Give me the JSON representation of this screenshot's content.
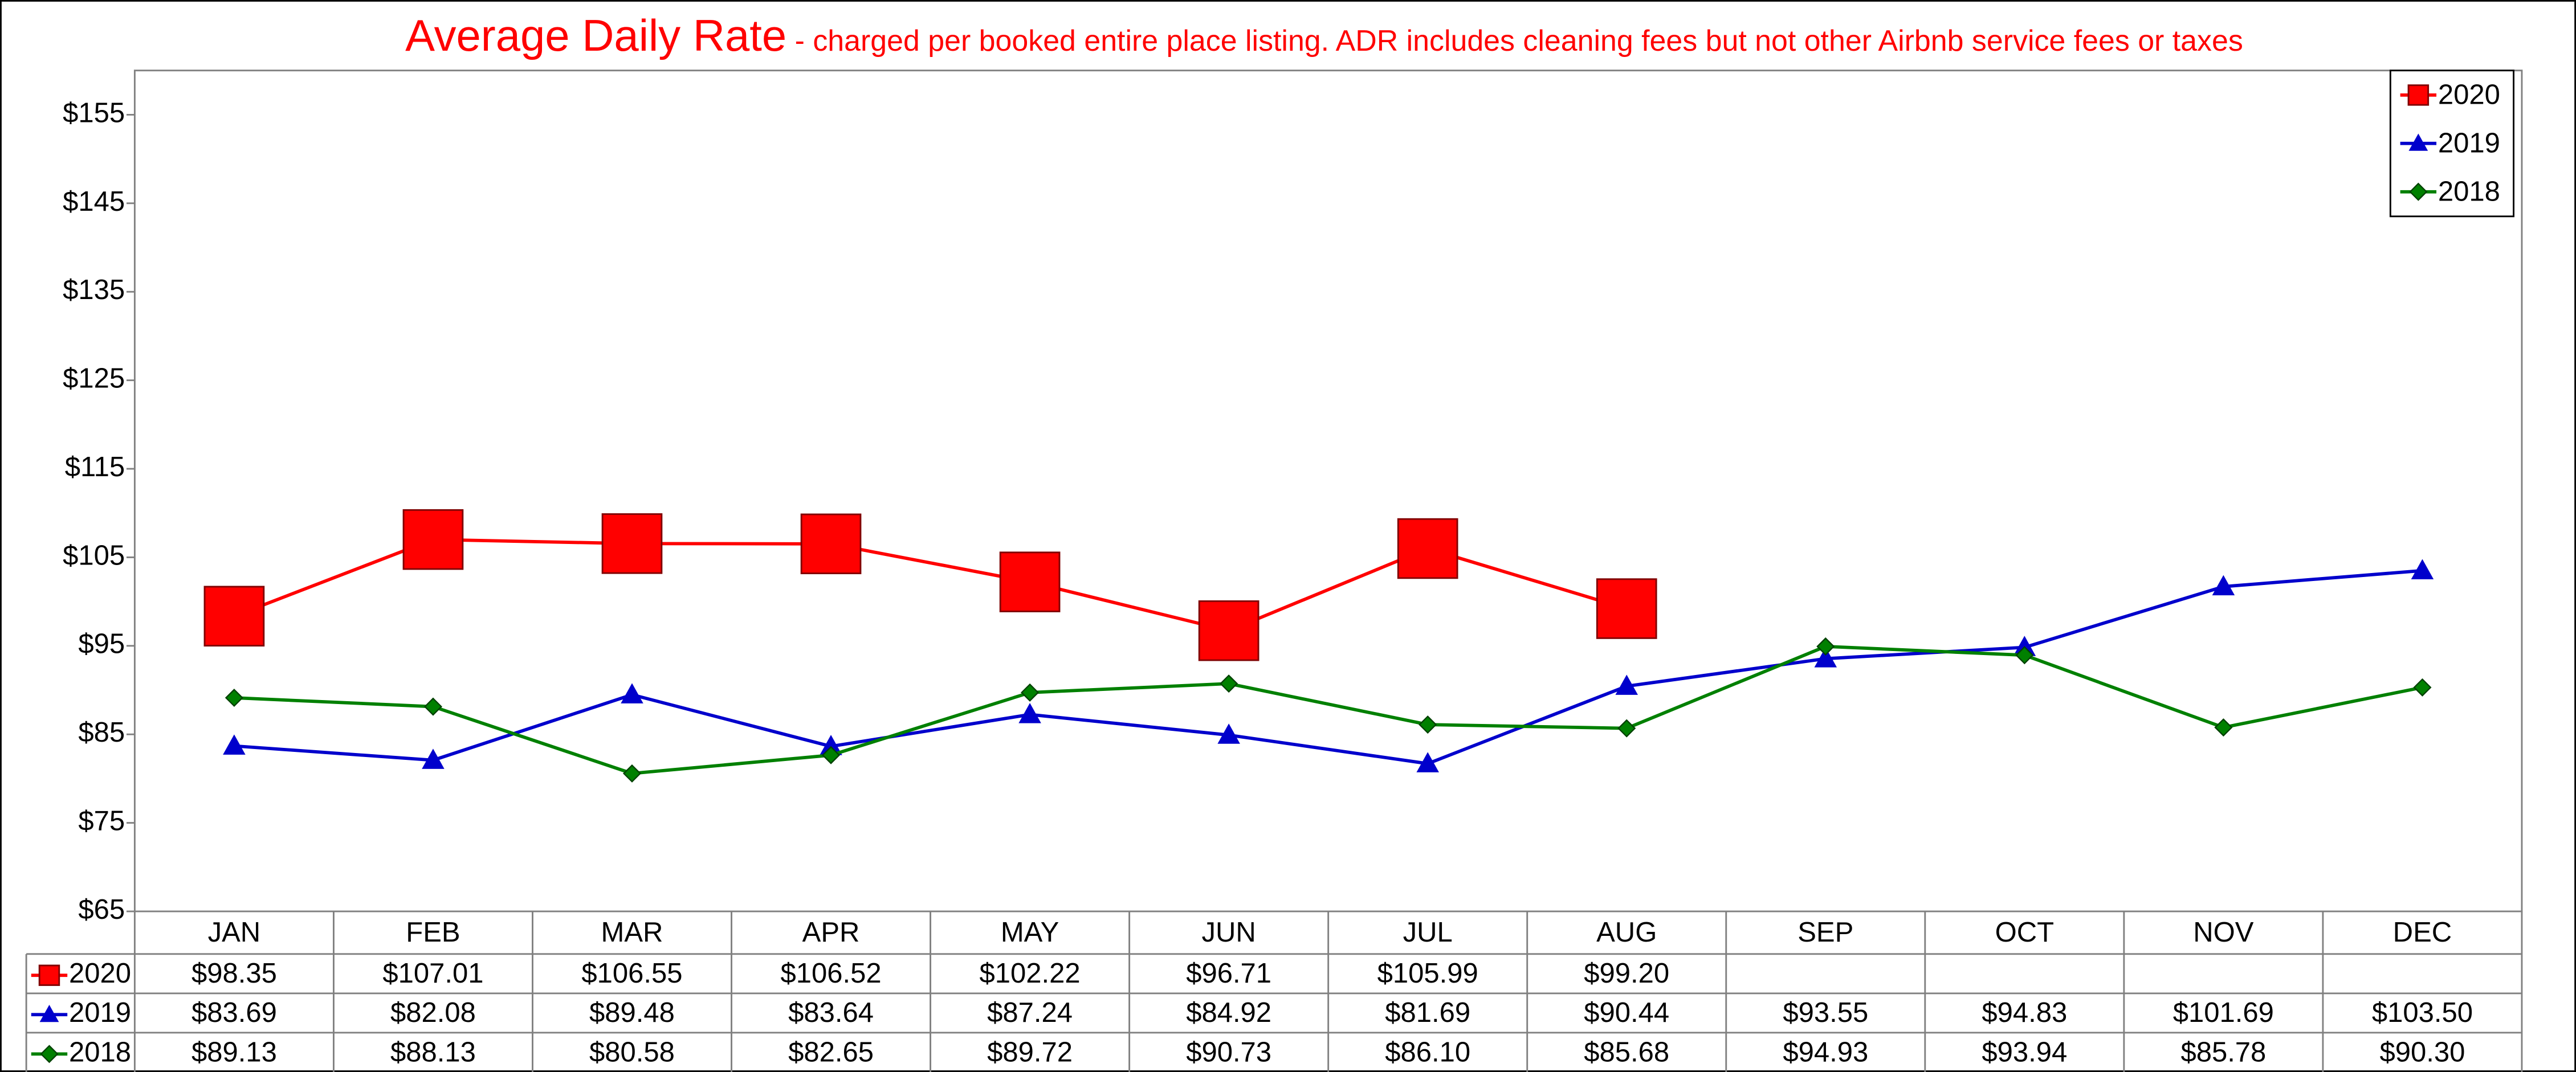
{
  "chart_data": {
    "type": "line",
    "title": "Average Daily Rate",
    "subtitle": " - charged per booked entire place listing. ADR includes cleaning fees but not other Airbnb service fees or taxes",
    "categories": [
      "JAN",
      "FEB",
      "MAR",
      "APR",
      "MAY",
      "JUN",
      "JUL",
      "AUG",
      "SEP",
      "OCT",
      "NOV",
      "DEC"
    ],
    "series": [
      {
        "name": "2020",
        "color": "#ff0000",
        "marker": "square",
        "values": [
          98.35,
          107.01,
          106.55,
          106.52,
          102.22,
          96.71,
          105.99,
          99.2,
          null,
          null,
          null,
          null
        ],
        "value_labels": [
          "$98.35",
          "$107.01",
          "$106.55",
          "$106.52",
          "$102.22",
          "$96.71",
          "$105.99",
          "$99.20",
          null,
          null,
          null,
          null
        ]
      },
      {
        "name": "2019",
        "color": "#0000cc",
        "marker": "triangle",
        "values": [
          83.69,
          82.08,
          89.48,
          83.64,
          87.24,
          84.92,
          81.69,
          90.44,
          93.55,
          94.83,
          101.69,
          103.5
        ],
        "value_labels": [
          "$83.69",
          "$82.08",
          "$89.48",
          "$83.64",
          "$87.24",
          "$84.92",
          "$81.69",
          "$90.44",
          "$93.55",
          "$94.83",
          "$101.69",
          "$103.50"
        ]
      },
      {
        "name": "2018",
        "color": "#008000",
        "marker": "diamond",
        "values": [
          89.13,
          88.13,
          80.58,
          82.65,
          89.72,
          90.73,
          86.1,
          85.68,
          94.93,
          93.94,
          85.78,
          90.3
        ],
        "value_labels": [
          "$89.13",
          "$88.13",
          "$80.58",
          "$82.65",
          "$89.72",
          "$90.73",
          "$86.10",
          "$85.68",
          "$94.93",
          "$93.94",
          "$85.78",
          "$90.30"
        ]
      }
    ],
    "ylim": [
      65,
      160
    ],
    "yticks": [
      {
        "value": 65,
        "label": "$65"
      },
      {
        "value": 75,
        "label": "$75"
      },
      {
        "value": 85,
        "label": "$85"
      },
      {
        "value": 95,
        "label": "$95"
      },
      {
        "value": 105,
        "label": "$105"
      },
      {
        "value": 115,
        "label": "$115"
      },
      {
        "value": 125,
        "label": "$125"
      },
      {
        "value": 135,
        "label": "$135"
      },
      {
        "value": 145,
        "label": "$145"
      },
      {
        "value": 155,
        "label": "$155"
      }
    ],
    "legend": "top-right",
    "grid": false
  }
}
